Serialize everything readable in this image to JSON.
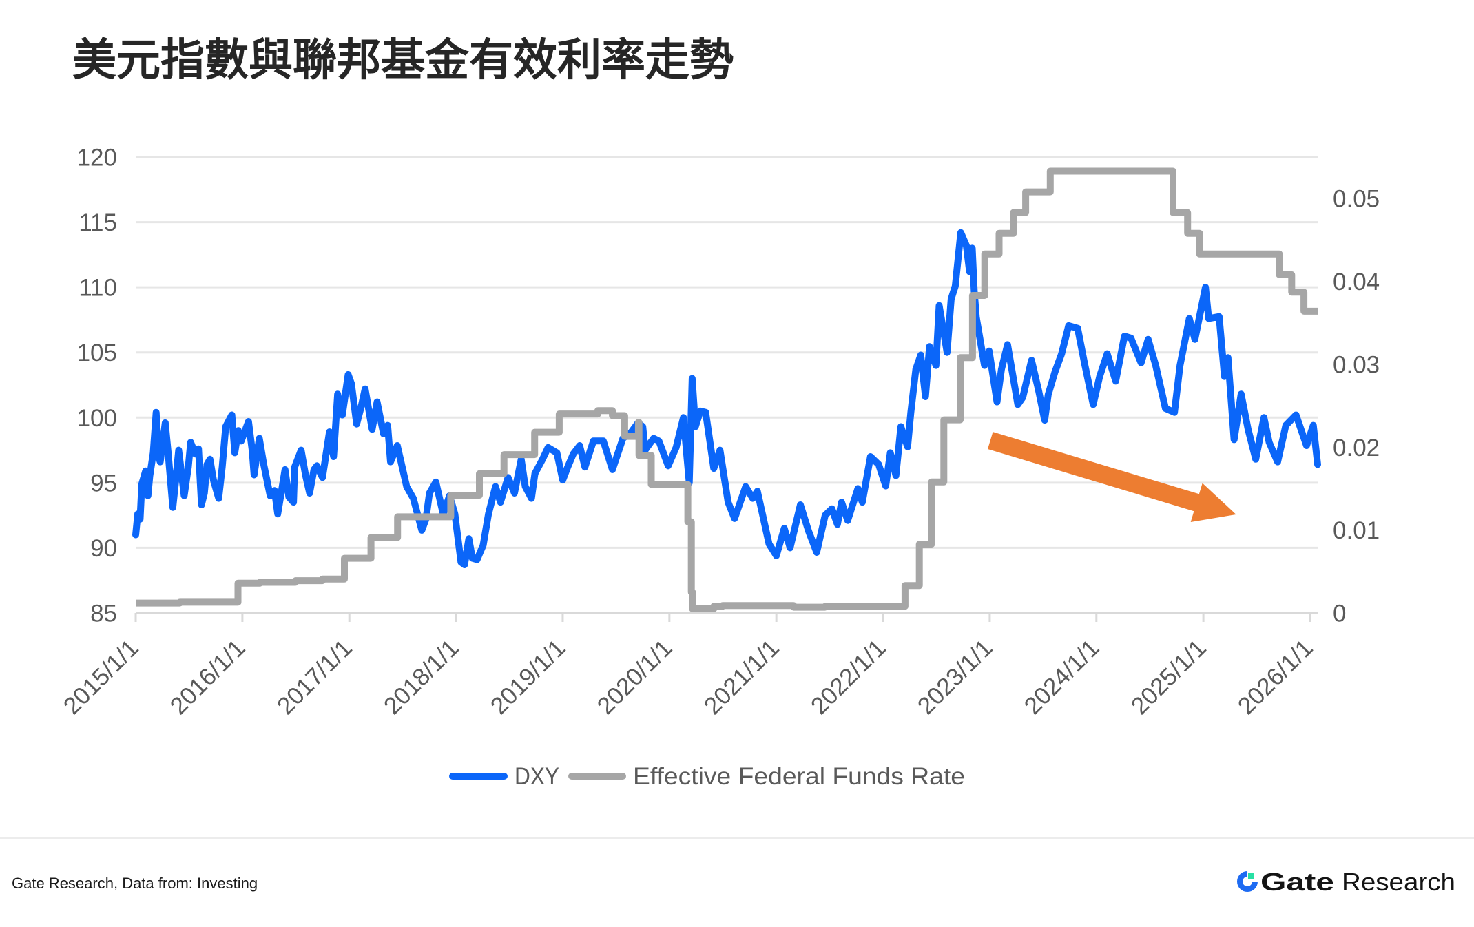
{
  "title": "美元指數與聯邦基金有效利率走勢",
  "footer": {
    "source": "Gate Research, Data from: Investing",
    "brand_bold": "Gate",
    "brand_regular": "Research",
    "brand_colors": {
      "ring": "#1E6BF2",
      "square": "#27E0A4",
      "text": "#141414"
    }
  },
  "chart_data": {
    "type": "line",
    "title": "美元指數與聯邦基金有效利率走勢",
    "xlabel": "",
    "ylabel": "",
    "y2label": "",
    "grid": true,
    "legend_position": "bottom",
    "x_ticks": [
      "2015/1/1",
      "2016/1/1",
      "2017/1/1",
      "2018/1/1",
      "2019/1/1",
      "2020/1/1",
      "2021/1/1",
      "2022/1/1",
      "2023/1/1",
      "2024/1/1",
      "2025/1/1",
      "2026/1/1"
    ],
    "x_tick_dates": [
      "2015-01-01",
      "2016-01-01",
      "2017-01-01",
      "2018-01-01",
      "2019-01-01",
      "2020-01-01",
      "2021-01-01",
      "2022-01-01",
      "2023-01-01",
      "2024-01-01",
      "2025-01-01",
      "2026-01-01"
    ],
    "y_ticks": [
      85,
      90,
      95,
      100,
      105,
      110,
      115,
      120
    ],
    "y2_ticks": [
      "0",
      "0.01",
      "0.02",
      "0.03",
      "0.04",
      "0.05"
    ],
    "ylim": [
      85,
      120
    ],
    "y2lim": [
      0,
      0.055
    ],
    "xlim": [
      "2015-01-01",
      "2026-01-27"
    ],
    "series": [
      {
        "name": "DXY",
        "axis": "left",
        "style": "line",
        "color": "#0B66F9",
        "points": [
          [
            "2015-01-01",
            91.0
          ],
          [
            "2015-01-08",
            92.6
          ],
          [
            "2015-01-16",
            92.2
          ],
          [
            "2015-01-22",
            94.9
          ],
          [
            "2015-02-04",
            95.9
          ],
          [
            "2015-02-12",
            94.0
          ],
          [
            "2015-02-18",
            95.5
          ],
          [
            "2015-03-02",
            97.3
          ],
          [
            "2015-03-12",
            100.4
          ],
          [
            "2015-03-20",
            97.0
          ],
          [
            "2015-03-26",
            96.6
          ],
          [
            "2015-04-12",
            99.6
          ],
          [
            "2015-04-22",
            97.3
          ],
          [
            "2015-05-08",
            93.1
          ],
          [
            "2015-05-18",
            95.2
          ],
          [
            "2015-05-28",
            97.5
          ],
          [
            "2015-06-08",
            95.5
          ],
          [
            "2015-06-16",
            94.0
          ],
          [
            "2015-06-30",
            96.2
          ],
          [
            "2015-07-08",
            98.1
          ],
          [
            "2015-07-24",
            97.2
          ],
          [
            "2015-08-04",
            97.6
          ],
          [
            "2015-08-14",
            93.3
          ],
          [
            "2015-08-24",
            94.2
          ],
          [
            "2015-09-02",
            96.4
          ],
          [
            "2015-09-12",
            96.8
          ],
          [
            "2015-09-24",
            95.2
          ],
          [
            "2015-10-12",
            93.8
          ],
          [
            "2015-10-24",
            96.2
          ],
          [
            "2015-11-05",
            99.3
          ],
          [
            "2015-11-26",
            100.2
          ],
          [
            "2015-12-06",
            97.3
          ],
          [
            "2015-12-18",
            99.0
          ],
          [
            "2015-12-28",
            98.2
          ],
          [
            "2016-01-22",
            99.7
          ],
          [
            "2016-02-04",
            97.4
          ],
          [
            "2016-02-10",
            95.6
          ],
          [
            "2016-02-28",
            98.4
          ],
          [
            "2016-03-14",
            96.4
          ],
          [
            "2016-04-05",
            94.0
          ],
          [
            "2016-04-20",
            94.4
          ],
          [
            "2016-05-01",
            92.6
          ],
          [
            "2016-05-26",
            96.0
          ],
          [
            "2016-06-08",
            93.9
          ],
          [
            "2016-06-24",
            93.5
          ],
          [
            "2016-06-28",
            96.2
          ],
          [
            "2016-07-20",
            97.5
          ],
          [
            "2016-08-04",
            95.6
          ],
          [
            "2016-08-18",
            94.2
          ],
          [
            "2016-09-02",
            96.0
          ],
          [
            "2016-09-12",
            96.3
          ],
          [
            "2016-10-01",
            95.4
          ],
          [
            "2016-10-25",
            98.9
          ],
          [
            "2016-11-08",
            97.0
          ],
          [
            "2016-11-22",
            101.8
          ],
          [
            "2016-12-08",
            100.2
          ],
          [
            "2016-12-28",
            103.3
          ],
          [
            "2017-01-08",
            102.6
          ],
          [
            "2017-01-26",
            99.5
          ],
          [
            "2017-02-10",
            100.8
          ],
          [
            "2017-02-24",
            102.2
          ],
          [
            "2017-03-20",
            99.1
          ],
          [
            "2017-04-06",
            101.2
          ],
          [
            "2017-04-28",
            98.75
          ],
          [
            "2017-05-12",
            99.4
          ],
          [
            "2017-05-22",
            96.6
          ],
          [
            "2017-06-14",
            97.85
          ],
          [
            "2017-07-16",
            94.7
          ],
          [
            "2017-08-08",
            93.8
          ],
          [
            "2017-09-06",
            91.35
          ],
          [
            "2017-09-20",
            92.2
          ],
          [
            "2017-10-02",
            94.2
          ],
          [
            "2017-10-24",
            95.05
          ],
          [
            "2017-11-18",
            92.6
          ],
          [
            "2017-12-10",
            94.0
          ],
          [
            "2017-12-28",
            92.6
          ],
          [
            "2018-01-18",
            88.9
          ],
          [
            "2018-01-30",
            88.7
          ],
          [
            "2018-02-14",
            90.7
          ],
          [
            "2018-02-26",
            89.2
          ],
          [
            "2018-03-14",
            89.1
          ],
          [
            "2018-04-04",
            90.2
          ],
          [
            "2018-04-22",
            92.6
          ],
          [
            "2018-05-16",
            94.7
          ],
          [
            "2018-06-02",
            93.5
          ],
          [
            "2018-06-28",
            95.4
          ],
          [
            "2018-07-20",
            94.2
          ],
          [
            "2018-08-12",
            96.8
          ],
          [
            "2018-08-26",
            94.7
          ],
          [
            "2018-09-16",
            93.8
          ],
          [
            "2018-09-28",
            95.7
          ],
          [
            "2018-10-24",
            96.8
          ],
          [
            "2018-11-12",
            97.7
          ],
          [
            "2018-12-12",
            97.3
          ],
          [
            "2019-01-01",
            95.2
          ],
          [
            "2019-01-18",
            96.2
          ],
          [
            "2019-02-06",
            97.2
          ],
          [
            "2019-02-28",
            97.85
          ],
          [
            "2019-03-18",
            96.2
          ],
          [
            "2019-04-16",
            98.2
          ],
          [
            "2019-05-20",
            98.2
          ],
          [
            "2019-06-20",
            96.0
          ],
          [
            "2019-07-26",
            98.4
          ],
          [
            "2019-08-24",
            98.9
          ],
          [
            "2019-09-16",
            99.6
          ],
          [
            "2019-10-02",
            99.3
          ],
          [
            "2019-10-10",
            97.5
          ],
          [
            "2019-11-08",
            98.4
          ],
          [
            "2019-11-26",
            98.2
          ],
          [
            "2019-12-28",
            96.3
          ],
          [
            "2020-01-24",
            97.7
          ],
          [
            "2020-02-18",
            100.0
          ],
          [
            "2020-03-09",
            95.0
          ],
          [
            "2020-03-19",
            103.0
          ],
          [
            "2020-03-30",
            99.3
          ],
          [
            "2020-04-16",
            100.5
          ],
          [
            "2020-05-04",
            100.4
          ],
          [
            "2020-06-01",
            96.1
          ],
          [
            "2020-06-22",
            97.5
          ],
          [
            "2020-07-20",
            93.5
          ],
          [
            "2020-08-11",
            92.25
          ],
          [
            "2020-09-18",
            94.7
          ],
          [
            "2020-10-12",
            93.8
          ],
          [
            "2020-10-28",
            94.35
          ],
          [
            "2020-12-07",
            90.3
          ],
          [
            "2021-01-01",
            89.4
          ],
          [
            "2021-01-28",
            91.5
          ],
          [
            "2021-02-17",
            90.0
          ],
          [
            "2021-03-24",
            93.3
          ],
          [
            "2021-04-21",
            91.3
          ],
          [
            "2021-05-19",
            89.65
          ],
          [
            "2021-06-17",
            92.5
          ],
          [
            "2021-07-10",
            93.0
          ],
          [
            "2021-07-29",
            91.8
          ],
          [
            "2021-08-12",
            93.5
          ],
          [
            "2021-09-02",
            92.1
          ],
          [
            "2021-10-07",
            94.55
          ],
          [
            "2021-10-22",
            93.5
          ],
          [
            "2021-11-19",
            97.0
          ],
          [
            "2021-12-17",
            96.4
          ],
          [
            "2022-01-10",
            94.75
          ],
          [
            "2022-01-26",
            97.3
          ],
          [
            "2022-02-14",
            95.55
          ],
          [
            "2022-03-03",
            99.3
          ],
          [
            "2022-03-26",
            97.75
          ],
          [
            "2022-04-06",
            100.4
          ],
          [
            "2022-04-23",
            103.7
          ],
          [
            "2022-05-10",
            104.8
          ],
          [
            "2022-05-26",
            101.6
          ],
          [
            "2022-06-09",
            105.45
          ],
          [
            "2022-07-01",
            104.0
          ],
          [
            "2022-07-12",
            108.6
          ],
          [
            "2022-08-08",
            105.0
          ],
          [
            "2022-08-22",
            109.1
          ],
          [
            "2022-09-05",
            110.1
          ],
          [
            "2022-09-24",
            114.2
          ],
          [
            "2022-10-13",
            113.2
          ],
          [
            "2022-10-24",
            111.2
          ],
          [
            "2022-11-02",
            113.0
          ],
          [
            "2022-11-09",
            109.7
          ],
          [
            "2022-11-16",
            107.7
          ],
          [
            "2022-12-14",
            104.0
          ],
          [
            "2022-12-30",
            105.1
          ],
          [
            "2023-01-26",
            101.2
          ],
          [
            "2023-02-10",
            103.7
          ],
          [
            "2023-03-03",
            105.6
          ],
          [
            "2023-04-07",
            101.0
          ],
          [
            "2023-04-24",
            101.55
          ],
          [
            "2023-05-24",
            104.4
          ],
          [
            "2023-06-17",
            102.1
          ],
          [
            "2023-07-08",
            99.8
          ],
          [
            "2023-07-20",
            101.75
          ],
          [
            "2023-08-12",
            103.5
          ],
          [
            "2023-09-04",
            104.9
          ],
          [
            "2023-09-28",
            107.05
          ],
          [
            "2023-10-29",
            106.85
          ],
          [
            "2023-11-21",
            104.2
          ],
          [
            "2023-12-21",
            101.0
          ],
          [
            "2024-01-12",
            103.15
          ],
          [
            "2024-02-07",
            104.9
          ],
          [
            "2024-03-07",
            102.8
          ],
          [
            "2024-04-06",
            106.25
          ],
          [
            "2024-04-28",
            106.1
          ],
          [
            "2024-06-02",
            104.2
          ],
          [
            "2024-06-26",
            106.0
          ],
          [
            "2024-07-22",
            104.0
          ],
          [
            "2024-08-24",
            100.7
          ],
          [
            "2024-09-24",
            100.4
          ],
          [
            "2024-10-13",
            104.0
          ],
          [
            "2024-11-14",
            107.6
          ],
          [
            "2024-12-03",
            106.0
          ],
          [
            "2025-01-08",
            110.0
          ],
          [
            "2025-01-19",
            107.6
          ],
          [
            "2025-02-24",
            107.75
          ],
          [
            "2025-03-14",
            103.15
          ],
          [
            "2025-03-26",
            104.6
          ],
          [
            "2025-04-16",
            98.3
          ],
          [
            "2025-05-10",
            101.8
          ],
          [
            "2025-06-03",
            99.1
          ],
          [
            "2025-06-29",
            96.8
          ],
          [
            "2025-07-27",
            100.0
          ],
          [
            "2025-08-14",
            98.1
          ],
          [
            "2025-09-12",
            96.6
          ],
          [
            "2025-10-10",
            99.4
          ],
          [
            "2025-11-14",
            100.2
          ],
          [
            "2025-12-20",
            97.85
          ],
          [
            "2026-01-12",
            99.4
          ],
          [
            "2026-01-27",
            96.4
          ]
        ]
      },
      {
        "name": "Effective Federal Funds Rate",
        "axis": "right",
        "style": "step",
        "color": "#A6A6A6",
        "points": [
          [
            "2015-01-01",
            0.0012
          ],
          [
            "2015-06-01",
            0.0013
          ],
          [
            "2015-12-17",
            0.0036
          ],
          [
            "2016-03-01",
            0.0037
          ],
          [
            "2016-07-01",
            0.0039
          ],
          [
            "2016-10-01",
            0.0041
          ],
          [
            "2016-12-15",
            0.0066
          ],
          [
            "2017-03-16",
            0.0091
          ],
          [
            "2017-06-15",
            0.0116
          ],
          [
            "2017-12-14",
            0.0142
          ],
          [
            "2018-03-22",
            0.0168
          ],
          [
            "2018-06-14",
            0.0191
          ],
          [
            "2018-09-27",
            0.0218
          ],
          [
            "2018-12-20",
            0.024
          ],
          [
            "2019-05-01",
            0.0244
          ],
          [
            "2019-06-20",
            0.0238
          ],
          [
            "2019-08-01",
            0.0213
          ],
          [
            "2019-09-17",
            0.023
          ],
          [
            "2019-09-19",
            0.019
          ],
          [
            "2019-10-31",
            0.0155
          ],
          [
            "2020-03-04",
            0.011
          ],
          [
            "2020-03-16",
            0.0025
          ],
          [
            "2020-03-20",
            0.0005
          ],
          [
            "2020-06-01",
            0.0008
          ],
          [
            "2020-07-01",
            0.0009
          ],
          [
            "2021-03-01",
            0.0007
          ],
          [
            "2021-06-17",
            0.0008
          ],
          [
            "2022-03-17",
            0.0033
          ],
          [
            "2022-05-05",
            0.0083
          ],
          [
            "2022-06-16",
            0.0158
          ],
          [
            "2022-07-28",
            0.0233
          ],
          [
            "2022-09-22",
            0.0308
          ],
          [
            "2022-11-03",
            0.0383
          ],
          [
            "2022-12-15",
            0.0433
          ],
          [
            "2023-02-02",
            0.0458
          ],
          [
            "2023-03-23",
            0.0483
          ],
          [
            "2023-05-04",
            0.0508
          ],
          [
            "2023-07-27",
            0.0533
          ],
          [
            "2024-09-19",
            0.0483
          ],
          [
            "2024-11-08",
            0.0458
          ],
          [
            "2024-12-19",
            0.0433
          ],
          [
            "2025-09-18",
            0.0408
          ],
          [
            "2025-10-30",
            0.0387
          ],
          [
            "2025-12-11",
            0.0364
          ],
          [
            "2026-01-27",
            0.0364
          ]
        ]
      }
    ],
    "annotations": [
      {
        "type": "arrow",
        "color": "#ED7D31",
        "from": [
          "2023-01-03",
          98.24
        ],
        "to": [
          "2025-04-23",
          92.56
        ]
      }
    ]
  }
}
